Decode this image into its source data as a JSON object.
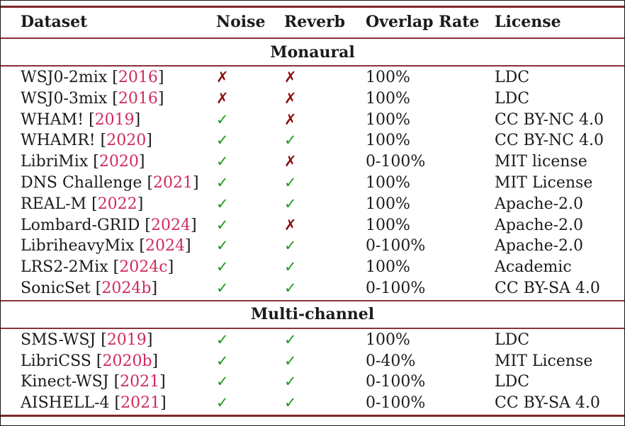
{
  "table": {
    "columns": [
      "Dataset",
      "Noise",
      "Reverb",
      "Overlap Rate",
      "License"
    ],
    "brackets": {
      "open": "[",
      "close": "]"
    },
    "sections": [
      {
        "title": "Monaural",
        "rows": [
          {
            "dataset": "WSJ0-2mix",
            "cite": "2016",
            "noise": false,
            "reverb": false,
            "overlap": "100%",
            "license": "LDC"
          },
          {
            "dataset": "WSJ0-3mix",
            "cite": "2016",
            "noise": false,
            "reverb": false,
            "overlap": "100%",
            "license": "LDC"
          },
          {
            "dataset": "WHAM!",
            "cite": "2019",
            "noise": true,
            "reverb": false,
            "overlap": "100%",
            "license": "CC BY-NC 4.0"
          },
          {
            "dataset": "WHAMR!",
            "cite": "2020",
            "noise": true,
            "reverb": true,
            "overlap": "100%",
            "license": "CC BY-NC 4.0"
          },
          {
            "dataset": "LibriMix",
            "cite": "2020",
            "noise": true,
            "reverb": false,
            "overlap": "0-100%",
            "license": "MIT license"
          },
          {
            "dataset": "DNS Challenge",
            "cite": "2021",
            "noise": true,
            "reverb": true,
            "overlap": "100%",
            "license": "MIT License"
          },
          {
            "dataset": "REAL-M",
            "cite": "2022",
            "noise": true,
            "reverb": true,
            "overlap": "100%",
            "license": "Apache-2.0"
          },
          {
            "dataset": "Lombard-GRID",
            "cite": "2024",
            "noise": true,
            "reverb": false,
            "overlap": "100%",
            "license": "Apache-2.0"
          },
          {
            "dataset": "LibriheavyMix",
            "cite": "2024",
            "noise": true,
            "reverb": true,
            "overlap": "0-100%",
            "license": "Apache-2.0"
          },
          {
            "dataset": "LRS2-2Mix",
            "cite": "2024c",
            "noise": true,
            "reverb": true,
            "overlap": "100%",
            "license": "Academic"
          },
          {
            "dataset": "SonicSet",
            "cite": "2024b",
            "noise": true,
            "reverb": true,
            "overlap": "0-100%",
            "license": "CC BY-SA 4.0"
          }
        ]
      },
      {
        "title": "Multi-channel",
        "rows": [
          {
            "dataset": "SMS-WSJ",
            "cite": "2019",
            "noise": true,
            "reverb": true,
            "overlap": "100%",
            "license": "LDC"
          },
          {
            "dataset": "LibriCSS",
            "cite": "2020b",
            "noise": true,
            "reverb": true,
            "overlap": "0-40%",
            "license": "MIT License"
          },
          {
            "dataset": "Kinect-WSJ",
            "cite": "2021",
            "noise": true,
            "reverb": true,
            "overlap": "0-100%",
            "license": "LDC"
          },
          {
            "dataset": "AISHELL-4",
            "cite": "2021",
            "noise": true,
            "reverb": true,
            "overlap": "0-100%",
            "license": "CC BY-SA 4.0"
          }
        ]
      }
    ]
  },
  "glyphs": {
    "check": "✓",
    "cross": "✗"
  },
  "colors": {
    "rule": "#8a3233",
    "rule_thick": "#7c2627",
    "citation": "#cf2b5b",
    "check": "#189a18",
    "cross": "#8b0d0d",
    "text": "#1b1b1b"
  }
}
